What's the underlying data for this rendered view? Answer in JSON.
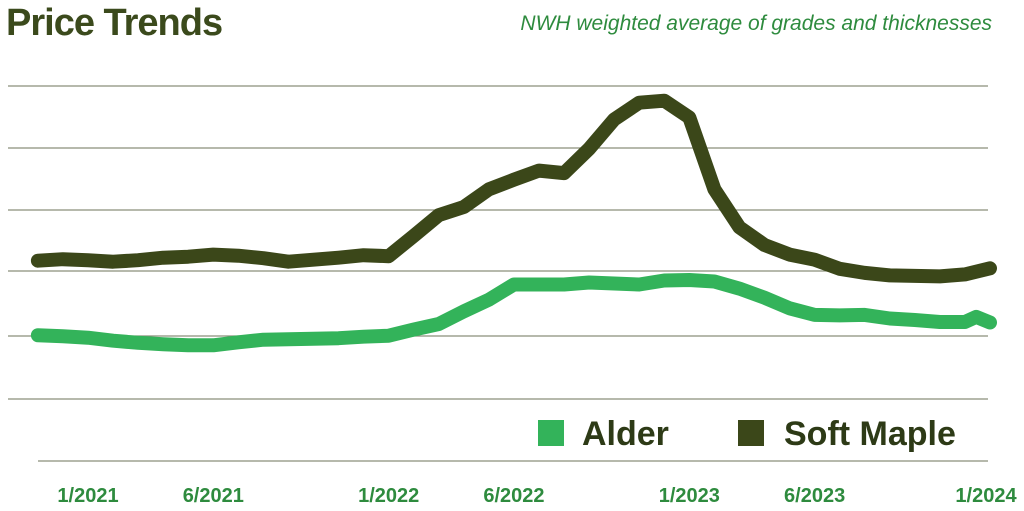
{
  "header": {
    "title": "Price Trends",
    "subtitle": "NWH weighted average of grades and thicknesses"
  },
  "colors": {
    "alder": "#33b35a",
    "soft_maple": "#3b4719",
    "gridline": "#8a8f7a",
    "tick_label": "#2e8b3e",
    "title": "#3b4a1c"
  },
  "chart_data": {
    "type": "line",
    "title": "Price Trends",
    "subtitle": "NWH weighted average of grades and thicknesses",
    "xlabel": "",
    "ylabel": "",
    "x_ticks": [
      "1/2021",
      "6/2021",
      "1/2022",
      "6/2022",
      "1/2023",
      "6/2023",
      "1/2024"
    ],
    "x_range": [
      "2020-11",
      "2024-01"
    ],
    "y_axis": "no tick labels shown",
    "grid": "horizontal",
    "legend": "bottom-right",
    "series": [
      {
        "name": "Alder",
        "color": "#33b35a",
        "points": [
          {
            "x": "2020-11",
            "y": 52.8
          },
          {
            "x": "2020-12",
            "y": 52.6
          },
          {
            "x": "2021-01",
            "y": 52.3
          },
          {
            "x": "2021-02",
            "y": 51.7
          },
          {
            "x": "2021-03",
            "y": 51.3
          },
          {
            "x": "2021-04",
            "y": 51.0
          },
          {
            "x": "2021-05",
            "y": 50.8
          },
          {
            "x": "2021-06",
            "y": 50.8
          },
          {
            "x": "2021-07",
            "y": 51.4
          },
          {
            "x": "2021-08",
            "y": 51.9
          },
          {
            "x": "2021-09",
            "y": 52.0
          },
          {
            "x": "2021-10",
            "y": 52.1
          },
          {
            "x": "2021-11",
            "y": 52.2
          },
          {
            "x": "2021-12",
            "y": 52.5
          },
          {
            "x": "2022-01",
            "y": 52.7
          },
          {
            "x": "2022-02",
            "y": 53.9
          },
          {
            "x": "2022-03",
            "y": 55.0
          },
          {
            "x": "2022-04",
            "y": 57.5
          },
          {
            "x": "2022-05",
            "y": 59.8
          },
          {
            "x": "2022-06",
            "y": 62.8
          },
          {
            "x": "2022-07",
            "y": 62.8
          },
          {
            "x": "2022-08",
            "y": 62.8
          },
          {
            "x": "2022-09",
            "y": 63.2
          },
          {
            "x": "2022-10",
            "y": 63.0
          },
          {
            "x": "2022-11",
            "y": 62.8
          },
          {
            "x": "2022-12",
            "y": 63.6
          },
          {
            "x": "2023-01",
            "y": 63.7
          },
          {
            "x": "2023-02",
            "y": 63.4
          },
          {
            "x": "2023-03",
            "y": 62.0
          },
          {
            "x": "2023-04",
            "y": 60.2
          },
          {
            "x": "2023-05",
            "y": 58.1
          },
          {
            "x": "2023-06",
            "y": 56.8
          },
          {
            "x": "2023-07",
            "y": 56.7
          },
          {
            "x": "2023-08",
            "y": 56.8
          },
          {
            "x": "2023-09",
            "y": 56.1
          },
          {
            "x": "2023-10",
            "y": 55.8
          },
          {
            "x": "2023-11",
            "y": 55.4
          },
          {
            "x": "2023-12",
            "y": 55.4
          },
          {
            "x": "2023-12",
            "y": 56.4
          },
          {
            "x": "2024-01",
            "y": 55.3
          }
        ]
      },
      {
        "name": "Soft Maple",
        "color": "#3b4719",
        "points": [
          {
            "x": "2020-11",
            "y": 67.5
          },
          {
            "x": "2020-12",
            "y": 67.8
          },
          {
            "x": "2021-01",
            "y": 67.6
          },
          {
            "x": "2021-02",
            "y": 67.3
          },
          {
            "x": "2021-03",
            "y": 67.6
          },
          {
            "x": "2021-04",
            "y": 68.1
          },
          {
            "x": "2021-05",
            "y": 68.3
          },
          {
            "x": "2021-06",
            "y": 68.7
          },
          {
            "x": "2021-07",
            "y": 68.5
          },
          {
            "x": "2021-08",
            "y": 68.0
          },
          {
            "x": "2021-09",
            "y": 67.3
          },
          {
            "x": "2021-10",
            "y": 67.7
          },
          {
            "x": "2021-11",
            "y": 68.1
          },
          {
            "x": "2021-12",
            "y": 68.6
          },
          {
            "x": "2022-01",
            "y": 68.4
          },
          {
            "x": "2022-02",
            "y": 72.4
          },
          {
            "x": "2022-03",
            "y": 76.5
          },
          {
            "x": "2022-04",
            "y": 78.1
          },
          {
            "x": "2022-05",
            "y": 81.6
          },
          {
            "x": "2022-06",
            "y": 83.5
          },
          {
            "x": "2022-07",
            "y": 85.3
          },
          {
            "x": "2022-08",
            "y": 84.8
          },
          {
            "x": "2022-09",
            "y": 89.6
          },
          {
            "x": "2022-10",
            "y": 95.4
          },
          {
            "x": "2022-11",
            "y": 98.7
          },
          {
            "x": "2022-12",
            "y": 99.1
          },
          {
            "x": "2023-01",
            "y": 95.8
          },
          {
            "x": "2023-02",
            "y": 81.6
          },
          {
            "x": "2023-03",
            "y": 74.1
          },
          {
            "x": "2023-04",
            "y": 70.6
          },
          {
            "x": "2023-05",
            "y": 68.7
          },
          {
            "x": "2023-06",
            "y": 67.7
          },
          {
            "x": "2023-07",
            "y": 65.9
          },
          {
            "x": "2023-08",
            "y": 65.1
          },
          {
            "x": "2023-09",
            "y": 64.6
          },
          {
            "x": "2023-10",
            "y": 64.5
          },
          {
            "x": "2023-11",
            "y": 64.4
          },
          {
            "x": "2023-12",
            "y": 64.8
          },
          {
            "x": "2024-01",
            "y": 66.0
          }
        ]
      }
    ]
  }
}
